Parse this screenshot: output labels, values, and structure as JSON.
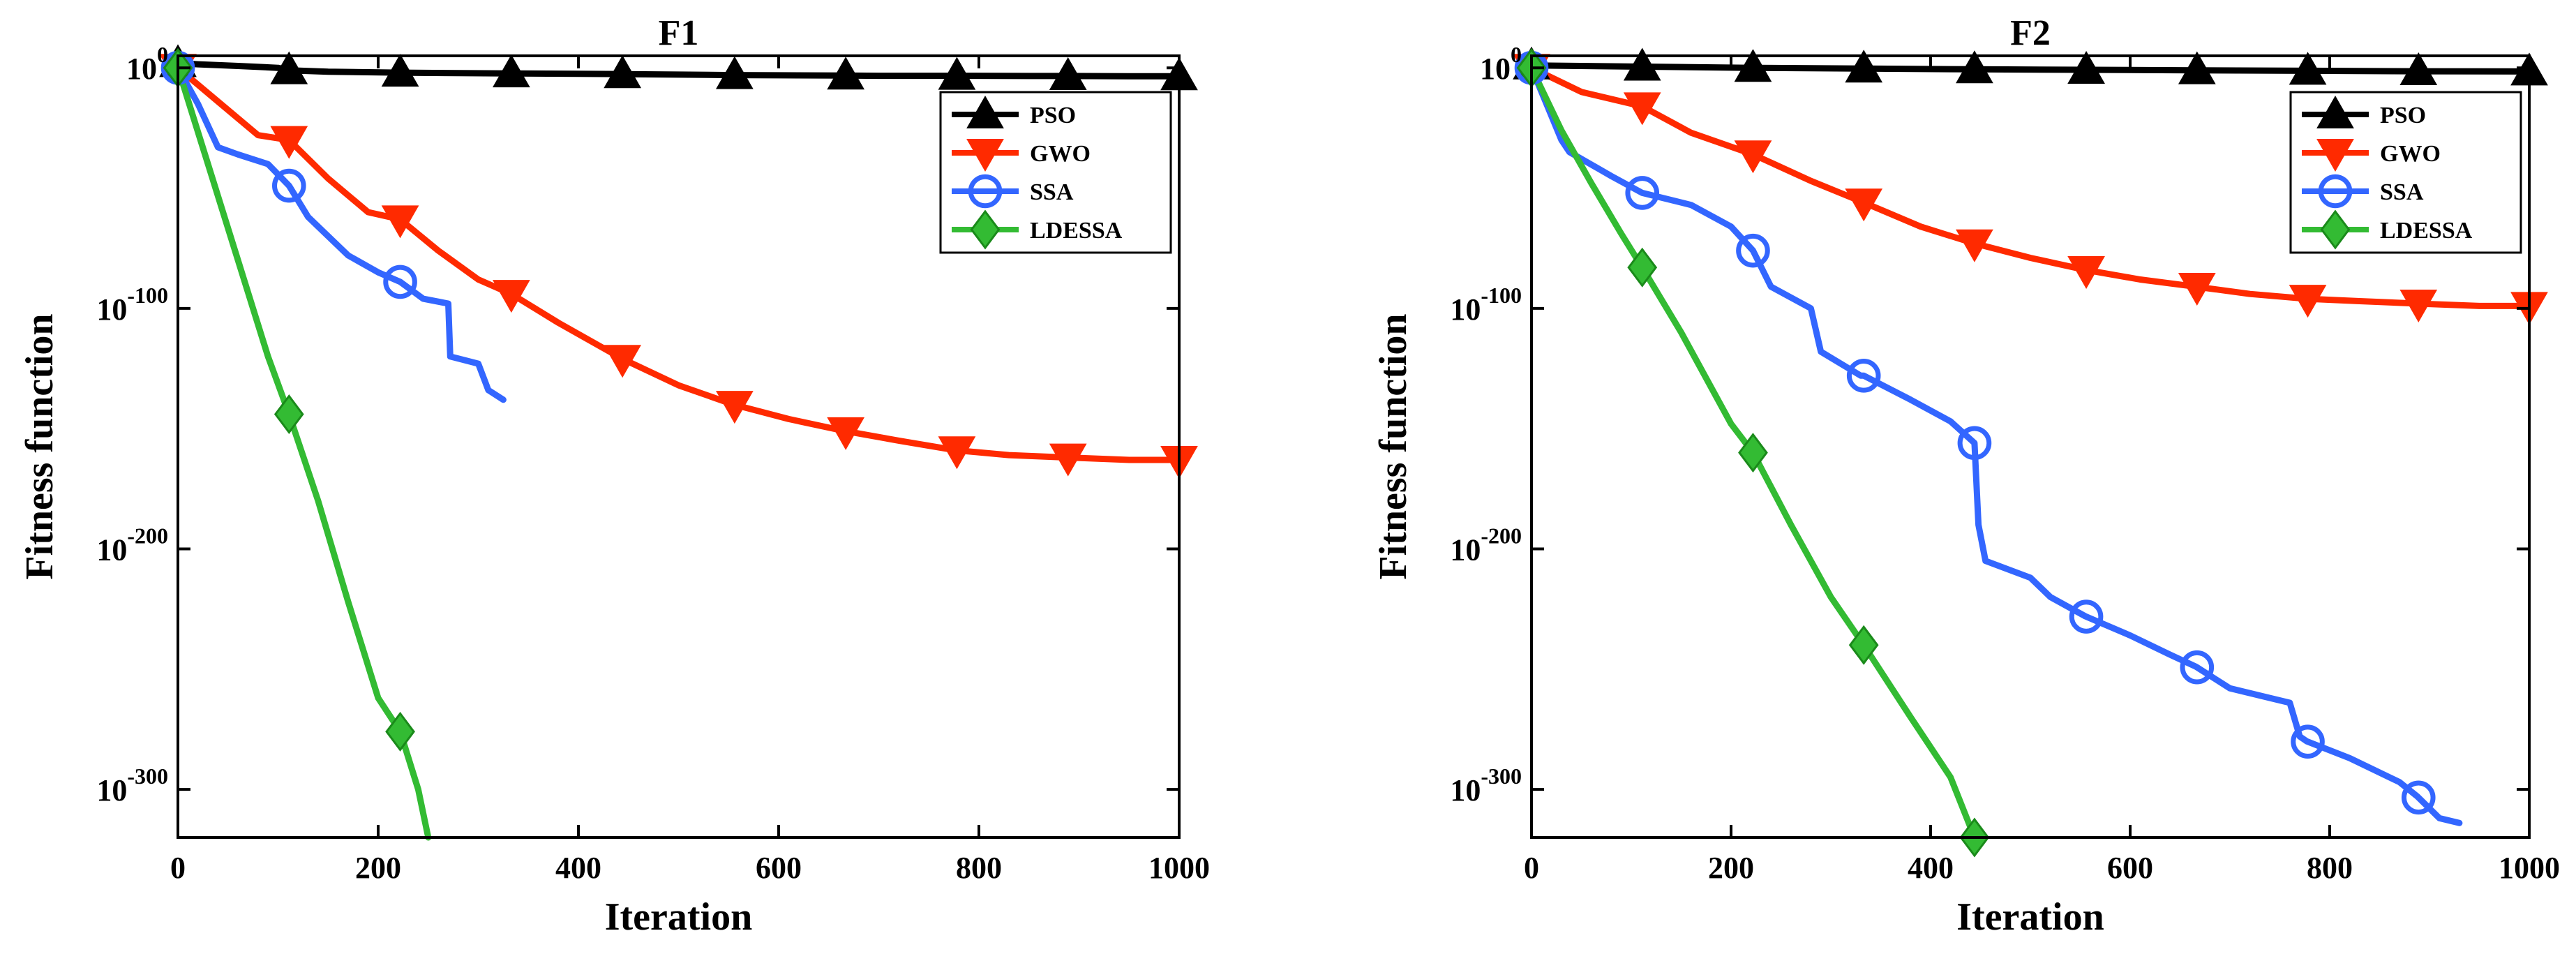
{
  "chart_data": [
    {
      "type": "line",
      "title": "F1",
      "xlabel": "Iteration",
      "ylabel": "Fitness function",
      "yscale": "log",
      "xlim": [
        0,
        1000
      ],
      "ylim_exp": [
        -320,
        5
      ],
      "xticks": [
        0,
        200,
        400,
        600,
        800,
        1000
      ],
      "xtick_labels": [
        "0",
        "200",
        "400",
        "600",
        "800",
        "1000"
      ],
      "yticks_exp": [
        0,
        -100,
        -200,
        -300
      ],
      "ytick_base": "10",
      "ytick_exps": [
        "0",
        "-100",
        "-200",
        "-300"
      ],
      "legend_position": "top-right",
      "series": [
        {
          "name": "PSO",
          "color": "#000000",
          "marker": "triangle-up",
          "x": [
            0,
            20,
            60,
            100,
            111,
            150,
            222,
            280,
            333,
            400,
            444,
            500,
            555,
            600,
            666,
            700,
            777,
            850,
            888,
            950,
            1000
          ],
          "y_exp": [
            2,
            1.5,
            0.8,
            0,
            -1,
            -1.6,
            -2,
            -2.2,
            -2.3,
            -2.5,
            -2.6,
            -2.8,
            -3,
            -3.1,
            -3.2,
            -3.3,
            -3.3,
            -3.4,
            -3.4,
            -3.5,
            -3.5
          ]
        },
        {
          "name": "GWO",
          "color": "#ff2a00",
          "marker": "triangle-down",
          "x": [
            0,
            40,
            80,
            111,
            150,
            190,
            222,
            260,
            300,
            333,
            380,
            444,
            500,
            555,
            610,
            666,
            720,
            777,
            830,
            888,
            950,
            1000
          ],
          "y_exp": [
            0,
            -14,
            -28,
            -30,
            -46,
            -60,
            -63,
            -76,
            -88,
            -94,
            -106,
            -121,
            -132,
            -140,
            -146,
            -151,
            -155,
            -159,
            -161,
            -162,
            -163,
            -163
          ]
        },
        {
          "name": "SSA",
          "color": "#3366ff",
          "marker": "circle",
          "x": [
            0,
            20,
            40,
            60,
            90,
            111,
            130,
            170,
            200,
            222,
            245,
            270,
            272,
            300,
            310,
            325
          ],
          "y_exp": [
            0,
            -15,
            -33,
            -36,
            -40,
            -49,
            -62,
            -78,
            -85,
            -89,
            -96,
            -98,
            -120,
            -123,
            -134,
            -138
          ]
        },
        {
          "name": "LDESSA",
          "color": "#33bb33",
          "marker": "diamond",
          "x": [
            0,
            30,
            60,
            90,
            111,
            140,
            170,
            200,
            222,
            240,
            250
          ],
          "y_exp": [
            0,
            -40,
            -80,
            -120,
            -144,
            -180,
            -222,
            -262,
            -276,
            -300,
            -320
          ]
        }
      ]
    },
    {
      "type": "line",
      "title": "F2",
      "xlabel": "Iteration",
      "ylabel": "Fitness function",
      "yscale": "log",
      "xlim": [
        0,
        1000
      ],
      "ylim_exp": [
        -320,
        5
      ],
      "xticks": [
        0,
        200,
        400,
        600,
        800,
        1000
      ],
      "xtick_labels": [
        "0",
        "200",
        "400",
        "600",
        "800",
        "1000"
      ],
      "yticks_exp": [
        0,
        -100,
        -200,
        -300
      ],
      "ytick_base": "10",
      "ytick_exps": [
        "0",
        "-100",
        "-200",
        "-300"
      ],
      "legend_position": "top-right",
      "series": [
        {
          "name": "PSO",
          "color": "#000000",
          "marker": "triangle-up",
          "x": [
            0,
            111,
            222,
            333,
            444,
            555,
            666,
            777,
            888,
            1000
          ],
          "y_exp": [
            1,
            0.5,
            0,
            -0.3,
            -0.6,
            -0.8,
            -1,
            -1.2,
            -1.4,
            -1.5
          ]
        },
        {
          "name": "GWO",
          "color": "#ff2a00",
          "marker": "triangle-down",
          "x": [
            0,
            50,
            111,
            160,
            222,
            280,
            333,
            390,
            444,
            500,
            555,
            610,
            666,
            720,
            777,
            830,
            888,
            950,
            1000
          ],
          "y_exp": [
            0,
            -10,
            -16,
            -27,
            -36,
            -47,
            -56,
            -66,
            -73,
            -79,
            -84,
            -88,
            -91,
            -94,
            -96,
            -97,
            -98,
            -99,
            -99
          ]
        },
        {
          "name": "SSA",
          "color": "#3366ff",
          "marker": "circle",
          "x": [
            0,
            30,
            38,
            80,
            111,
            160,
            200,
            222,
            240,
            280,
            290,
            330,
            333,
            380,
            420,
            444,
            448,
            455,
            500,
            520,
            555,
            600,
            640,
            666,
            700,
            740,
            760,
            770,
            777,
            820,
            870,
            888,
            910,
            930
          ],
          "y_exp": [
            0,
            -30,
            -35,
            -45,
            -52,
            -57,
            -66,
            -76,
            -91,
            -100,
            -118,
            -128,
            -128,
            -138,
            -147,
            -156,
            -190,
            -205,
            -212,
            -220,
            -228,
            -236,
            -244,
            -249,
            -258,
            -262,
            -264,
            -278,
            -280,
            -287,
            -297,
            -303,
            -312,
            -314
          ]
        },
        {
          "name": "LDESSA",
          "color": "#33bb33",
          "marker": "diamond",
          "x": [
            0,
            30,
            60,
            90,
            111,
            150,
            200,
            222,
            260,
            300,
            333,
            380,
            420,
            444
          ],
          "y_exp": [
            0,
            -26,
            -48,
            -69,
            -83,
            -110,
            -148,
            -160,
            -190,
            -220,
            -240,
            -270,
            -295,
            -320
          ]
        }
      ]
    }
  ]
}
